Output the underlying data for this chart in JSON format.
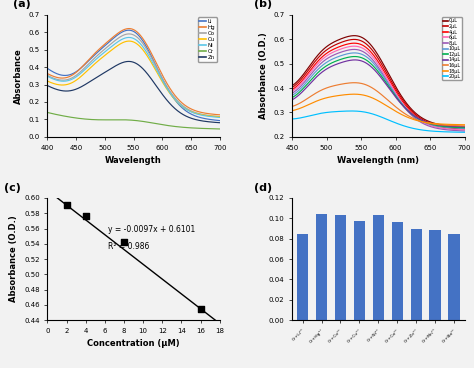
{
  "panel_a": {
    "title": "(a)",
    "xlabel": "Wavelength",
    "ylabel": "Absorbance",
    "xlim": [
      400,
      700
    ],
    "ylim": [
      0,
      0.7
    ],
    "xticks": [
      400,
      450,
      500,
      550,
      600,
      650,
      700
    ],
    "yticks": [
      0.0,
      0.1,
      0.2,
      0.3,
      0.4,
      0.5,
      0.6,
      0.7
    ],
    "lines": [
      {
        "label": "Li",
        "color": "#4472C4",
        "peak_main": 0.6,
        "peak_shoulder": 0.345,
        "val_400": 0.45,
        "val_700": 0.12
      },
      {
        "label": "Hg",
        "color": "#ED7D31",
        "peak_main": 0.61,
        "peak_shoulder": 0.355,
        "val_400": 0.46,
        "val_700": 0.2
      },
      {
        "label": "Co",
        "color": "#A5A5A5",
        "peak_main": 0.58,
        "peak_shoulder": 0.335,
        "val_400": 0.44,
        "val_700": 0.18
      },
      {
        "label": "Cu",
        "color": "#FFC000",
        "peak_main": 0.54,
        "peak_shoulder": 0.31,
        "val_400": 0.41,
        "val_700": 0.185
      },
      {
        "label": "Ni",
        "color": "#5BC6E8",
        "peak_main": 0.56,
        "peak_shoulder": 0.325,
        "val_400": 0.43,
        "val_700": 0.17
      },
      {
        "label": "Cr",
        "color": "#70AD47",
        "peak_main": 0.095,
        "peak_shoulder": 0.09,
        "val_400": 0.175,
        "val_700": 0.07
      },
      {
        "label": "Zn",
        "color": "#1F3864",
        "peak_main": 0.425,
        "peak_shoulder": 0.25,
        "val_400": 0.35,
        "val_700": 0.115
      }
    ]
  },
  "panel_b": {
    "title": "(b)",
    "xlabel": "Wavelength (nm)",
    "ylabel": "Absorbance (O.D.)",
    "xlim": [
      450,
      700
    ],
    "ylim": [
      0.2,
      0.7
    ],
    "xticks": [
      450,
      500,
      550,
      600,
      650,
      700
    ],
    "yticks": [
      0.2,
      0.3,
      0.4,
      0.5,
      0.6,
      0.7
    ],
    "lines": [
      {
        "label": "0μL",
        "color": "#7F0000",
        "peak_main": 0.6,
        "val_450": 0.358,
        "val_700": 0.23
      },
      {
        "label": "2μL",
        "color": "#C00000",
        "peak_main": 0.585,
        "val_450": 0.352,
        "val_700": 0.226
      },
      {
        "label": "4μL",
        "color": "#FF0000",
        "peak_main": 0.57,
        "val_450": 0.345,
        "val_700": 0.222
      },
      {
        "label": "6μL",
        "color": "#FF69B4",
        "peak_main": 0.558,
        "val_450": 0.34,
        "val_700": 0.218
      },
      {
        "label": "8μL",
        "color": "#9B59B6",
        "peak_main": 0.545,
        "val_450": 0.333,
        "val_700": 0.214
      },
      {
        "label": "10μL",
        "color": "#5B9BD5",
        "peak_main": 0.532,
        "val_450": 0.327,
        "val_700": 0.226
      },
      {
        "label": "12μL",
        "color": "#00B050",
        "peak_main": 0.518,
        "val_450": 0.32,
        "val_700": 0.23
      },
      {
        "label": "14μL",
        "color": "#7030A0",
        "peak_main": 0.505,
        "val_450": 0.313,
        "val_700": 0.235
      },
      {
        "label": "16μL",
        "color": "#ED7D31",
        "peak_main": 0.415,
        "val_450": 0.3,
        "val_700": 0.24
      },
      {
        "label": "18μL",
        "color": "#FF8C00",
        "peak_main": 0.37,
        "val_450": 0.29,
        "val_700": 0.246
      },
      {
        "label": "20μL",
        "color": "#00BFFF",
        "peak_main": 0.302,
        "val_450": 0.262,
        "val_700": 0.215
      }
    ]
  },
  "panel_c": {
    "title": "(c)",
    "xlabel": "Concentration (μM)",
    "ylabel": "Absorbance (O.D.)",
    "xlim": [
      0,
      18
    ],
    "ylim": [
      0.44,
      0.6
    ],
    "xticks": [
      0,
      2,
      4,
      6,
      8,
      10,
      12,
      14,
      16,
      18
    ],
    "yticks": [
      0.44,
      0.46,
      0.48,
      0.5,
      0.52,
      0.54,
      0.56,
      0.58,
      0.6
    ],
    "scatter_x": [
      2,
      4,
      8,
      16
    ],
    "scatter_y": [
      0.5905,
      0.5765,
      0.5425,
      0.455
    ],
    "slope": -0.0097,
    "intercept": 0.6101,
    "equation": "y = -0.0097x + 0.6101",
    "r2_text": "R² = 0.986"
  },
  "panel_d": {
    "title": "(d)",
    "ylim": [
      0,
      0.12
    ],
    "yticks": [
      0,
      0.02,
      0.04,
      0.06,
      0.08,
      0.1,
      0.12
    ],
    "bar_color": "#4472C4",
    "categories": [
      "Cr+Li²⁺",
      "Cr+Hg²⁺",
      "Cr+Co²⁺",
      "Cr+Cu²⁺",
      "Cr+Ni²⁺",
      "Cr+Ca²⁺",
      "Cr+Zn²⁺",
      "Cr+Mn²⁺",
      "Cr+Ba²⁺"
    ],
    "values": [
      0.085,
      0.104,
      0.103,
      0.097,
      0.103,
      0.096,
      0.09,
      0.089,
      0.085
    ]
  }
}
